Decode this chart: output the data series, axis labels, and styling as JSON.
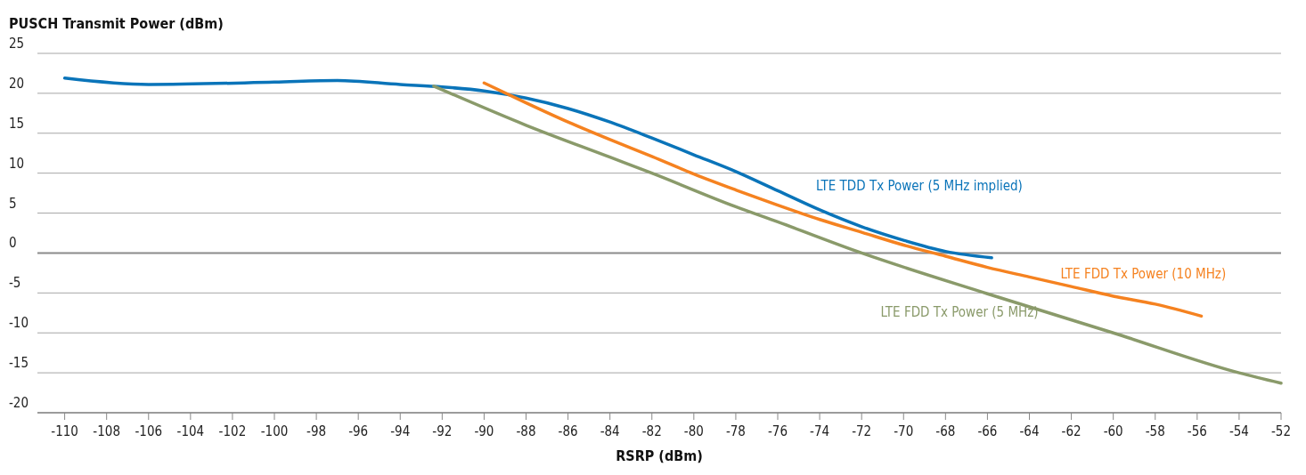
{
  "chart_data": {
    "type": "line",
    "ylabel": "PUSCH Transmit Power (dBm)",
    "xlabel": "RSRP (dBm)",
    "xlim": [
      -111.3,
      -52
    ],
    "xticks": [
      -110,
      -108,
      -106,
      -104,
      -102,
      -100,
      -98,
      -96,
      -94,
      -92,
      -90,
      -88,
      -86,
      -84,
      -82,
      -80,
      -78,
      -76,
      -74,
      -72,
      -70,
      -68,
      -66,
      -64,
      -62,
      -60,
      -58,
      -56,
      -54,
      -52
    ],
    "ylim": [
      -20,
      25
    ],
    "yticks": [
      -20,
      -15,
      -10,
      -5,
      0,
      5,
      10,
      15,
      20,
      25
    ],
    "grid": "y",
    "legend": false,
    "ref_lines": [
      {
        "axis": "y",
        "value": 0,
        "color": "#8c8c8c"
      }
    ],
    "series": [
      {
        "name": "LTE TDD Tx Power (5 MHz implied)",
        "color": "#0a74b9",
        "x": [
          -110,
          -106,
          -100,
          -97,
          -94,
          -92,
          -90,
          -88,
          -86,
          -84,
          -82,
          -80,
          -78,
          -76,
          -74,
          -72,
          -70,
          -68,
          -65.8
        ],
        "values": [
          21.9,
          21.1,
          21.4,
          21.6,
          21.1,
          20.8,
          20.3,
          19.4,
          18.1,
          16.4,
          14.4,
          12.3,
          10.2,
          7.8,
          5.4,
          3.3,
          1.6,
          0.2,
          -0.6
        ]
      },
      {
        "name": "LTE FDD Tx Power (10 MHz)",
        "color": "#f58220",
        "x": [
          -90,
          -88,
          -86,
          -84,
          -82,
          -80,
          -78,
          -76,
          -74,
          -72,
          -70,
          -68,
          -66,
          -64,
          -62,
          -60,
          -58,
          -55.8
        ],
        "values": [
          21.3,
          18.8,
          16.4,
          14.2,
          12.1,
          9.9,
          7.9,
          6.0,
          4.2,
          2.6,
          1.0,
          -0.4,
          -1.8,
          -3.0,
          -4.2,
          -5.4,
          -6.4,
          -7.9
        ]
      },
      {
        "name": "LTE FDD Tx Power (5 MHz)",
        "color": "#8a9a6a",
        "x": [
          -92.4,
          -88,
          -84,
          -82,
          -78,
          -76,
          -72,
          -66,
          -60,
          -54,
          -52
        ],
        "values": [
          20.9,
          16.0,
          12.0,
          10.0,
          5.8,
          3.9,
          0,
          -5.1,
          -10,
          -15,
          -16.3
        ]
      }
    ]
  }
}
